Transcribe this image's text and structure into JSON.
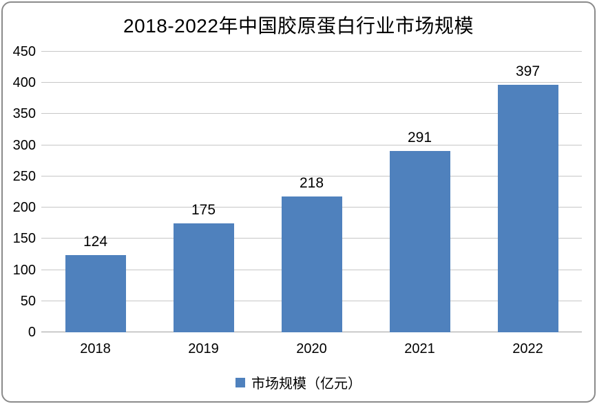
{
  "chart_data": {
    "type": "bar",
    "title": "2018-2022年中国胶原蛋白行业市场规模",
    "categories": [
      "2018",
      "2019",
      "2020",
      "2021",
      "2022"
    ],
    "series": [
      {
        "name": "市场规模（亿元）",
        "values": [
          124,
          175,
          218,
          291,
          397
        ]
      }
    ],
    "xlabel": "",
    "ylabel": "",
    "ylim": [
      0,
      450
    ],
    "yticks": [
      0,
      50,
      100,
      150,
      200,
      250,
      300,
      350,
      400,
      450
    ],
    "grid": "horizontal",
    "legend_position": "bottom"
  },
  "colors": {
    "bar": "#4F81BD",
    "gridline": "#C6C6C6",
    "axis_line": "#9E9E9E",
    "frame_border": "#8A8A8A",
    "text": "#000000"
  }
}
